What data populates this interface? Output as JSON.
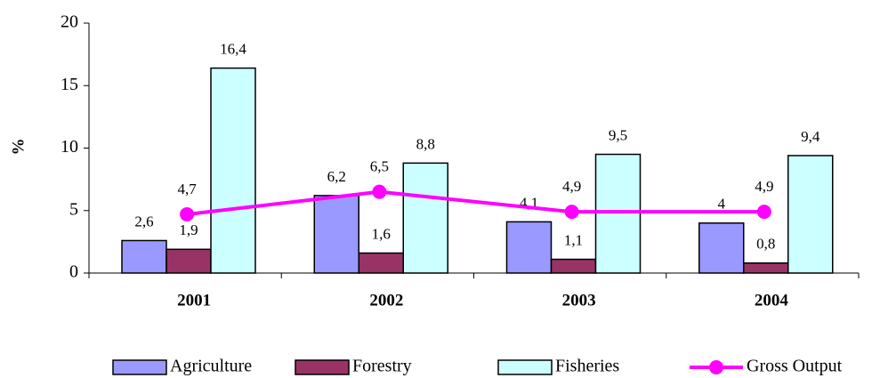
{
  "chart_data": {
    "type": "bar",
    "y_label": "%",
    "categories": [
      "2001",
      "2002",
      "2003",
      "2004"
    ],
    "ylim": [
      0,
      20
    ],
    "yticks": [
      0,
      5,
      10,
      15,
      20
    ],
    "series": [
      {
        "name": "Agriculture",
        "color": "#9999ff",
        "values": [
          2.6,
          6.2,
          4.1,
          4
        ],
        "value_labels": [
          "2,6",
          "6,2",
          "4,1",
          "4"
        ]
      },
      {
        "name": "Forestry",
        "color": "#993366",
        "values": [
          1.9,
          1.6,
          1.1,
          0.8
        ],
        "value_labels": [
          "1,9",
          "1,6",
          "1,1",
          "0,8"
        ]
      },
      {
        "name": "Fisheries",
        "color": "#ccffff",
        "values": [
          16.4,
          8.8,
          9.5,
          9.4
        ],
        "value_labels": [
          "16,4",
          "8,8",
          "9,5",
          "9,4"
        ]
      },
      {
        "name": "Gross Output",
        "type": "line",
        "color": "#ff00ff",
        "values": [
          4.7,
          6.5,
          4.9,
          4.9
        ],
        "value_labels": [
          "4,7",
          "6,5",
          "4,9",
          "4,9"
        ]
      }
    ]
  }
}
